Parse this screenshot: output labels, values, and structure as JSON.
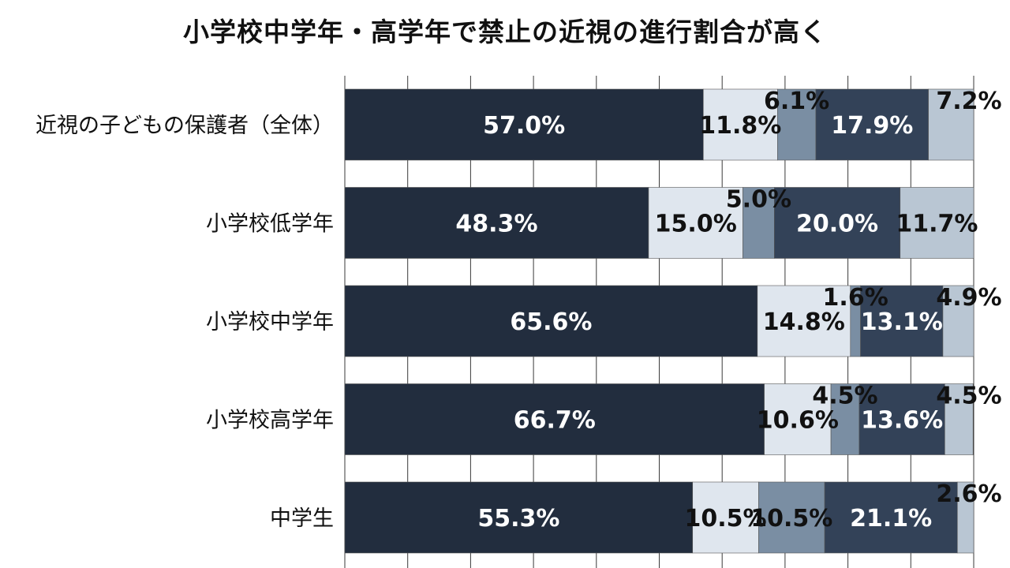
{
  "chart_data": {
    "type": "bar",
    "orientation": "horizontal",
    "stacked": true,
    "percent": true,
    "title": "小学校中学年・高学年で禁止の近視の進行割合が高く",
    "categories": [
      "近視の子どもの保護者（全体）",
      "小学校低学年",
      "小学校中学年",
      "小学校高学年",
      "中学生"
    ],
    "series": [
      {
        "values": [
          57.0,
          48.3,
          65.6,
          66.7,
          55.3
        ],
        "labels": [
          "57.0%",
          "48.3%",
          "65.6%",
          "66.7%",
          "55.3%"
        ],
        "color": "#222d3e",
        "label_color": "#ffffff"
      },
      {
        "values": [
          11.8,
          15.0,
          14.8,
          10.6,
          10.5
        ],
        "labels": [
          "11.8%",
          "15.0%",
          "14.8%",
          "10.6%",
          "10.5%"
        ],
        "color": "#dfe6ee",
        "label_color": "#111111"
      },
      {
        "values": [
          6.1,
          5.0,
          1.6,
          4.5,
          10.5
        ],
        "labels": [
          "6.1%",
          "5.0%",
          "1.6%",
          "4.5%",
          "10.5%"
        ],
        "color": "#7a8ea3",
        "label_color": "#111111"
      },
      {
        "values": [
          17.9,
          20.0,
          13.1,
          13.6,
          21.1
        ],
        "labels": [
          "17.9%",
          "20.0%",
          "13.1%",
          "13.6%",
          "21.1%"
        ],
        "color": "#334258",
        "label_color": "#ffffff"
      },
      {
        "values": [
          7.2,
          11.7,
          4.9,
          4.5,
          2.6
        ],
        "labels": [
          "7.2%",
          "11.7%",
          "4.9%",
          "4.5%",
          "2.6%"
        ],
        "color": "#b9c6d3",
        "label_color": "#111111"
      }
    ],
    "xlim": [
      0,
      100
    ],
    "grid": true,
    "legend": "none"
  }
}
